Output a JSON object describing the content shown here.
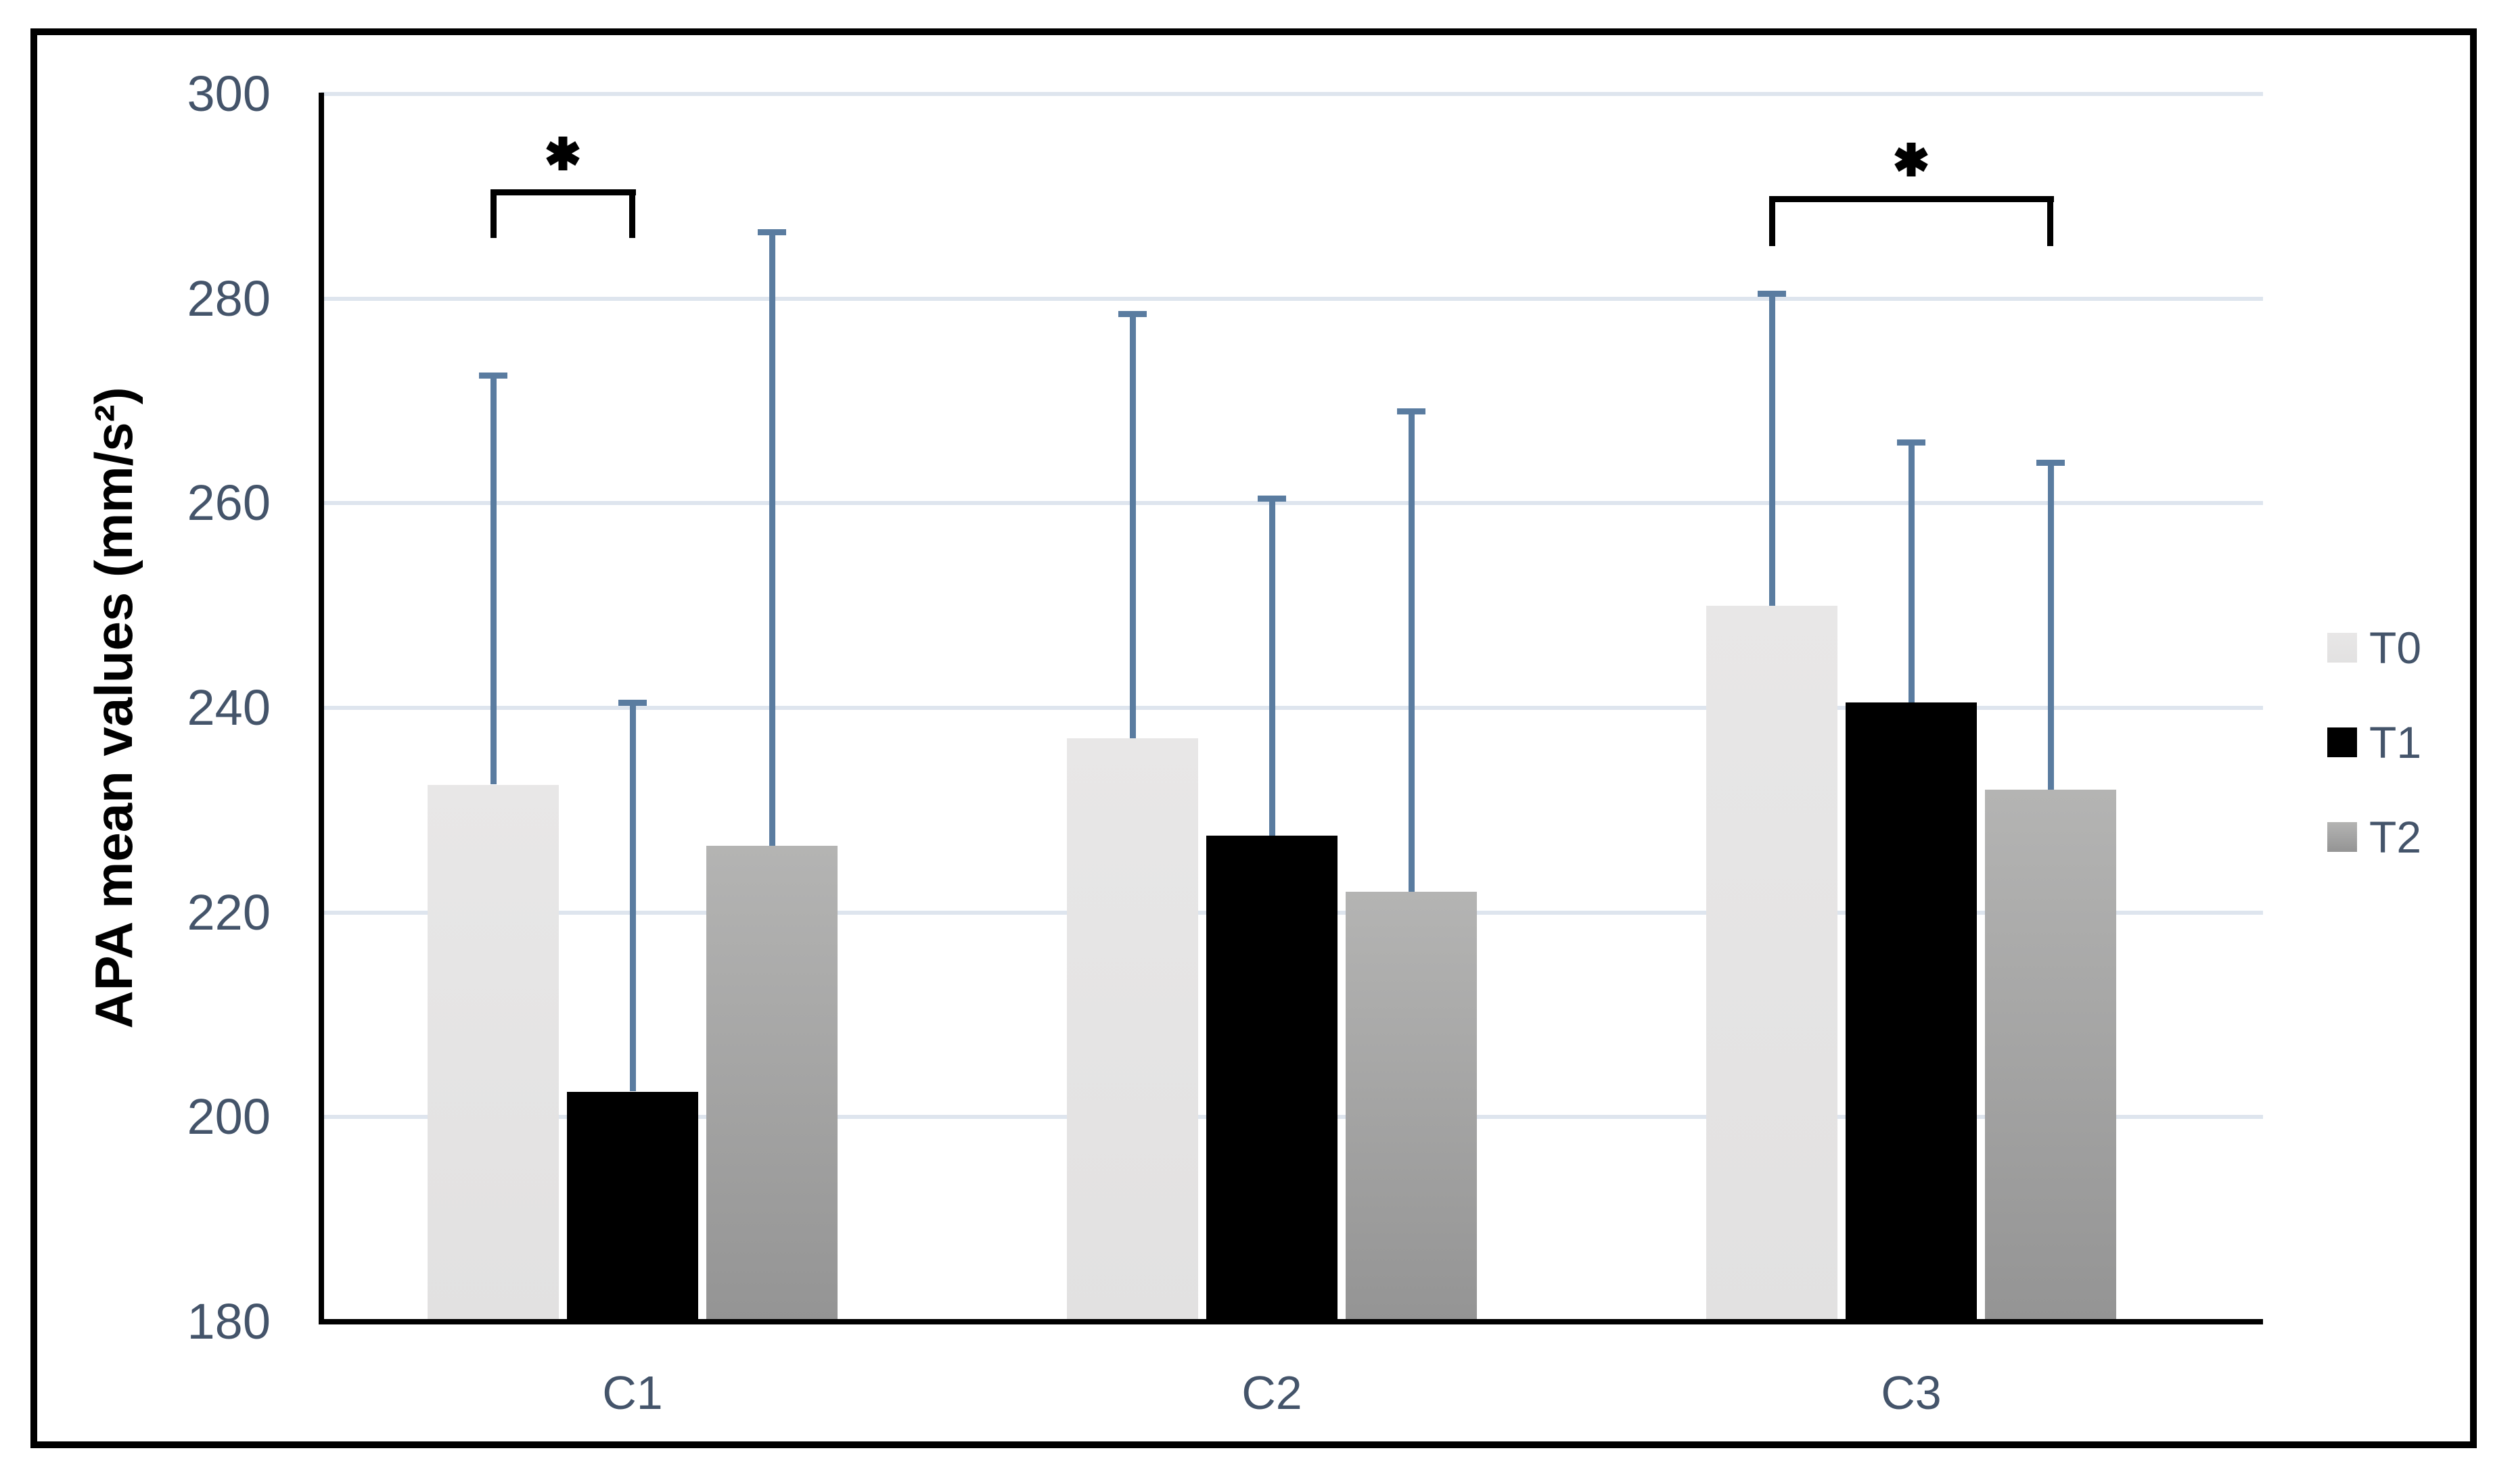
{
  "chart_data": {
    "type": "bar",
    "title": "",
    "categories": [
      "C1",
      "C2",
      "C3"
    ],
    "series": [
      {
        "name": "T0",
        "values": [
          232.5,
          237,
          250
        ],
        "error_top": [
          272.5,
          278.5,
          280.5
        ],
        "fill": "#E8E7E7",
        "fill_bottom": "#E2E1E1"
      },
      {
        "name": "T1",
        "values": [
          202.5,
          227.5,
          240.5
        ],
        "error_top": [
          240.5,
          260.5,
          266
        ],
        "fill": "#000000",
        "fill_bottom": "#000000"
      },
      {
        "name": "T2",
        "values": [
          226.5,
          222,
          232
        ],
        "error_top": [
          286.5,
          269,
          264
        ],
        "fill": "#B4B4B3",
        "fill_bottom": "#949494"
      }
    ],
    "ylabel": "APA mean values (mm/s²)",
    "xlabel": "",
    "ylim": [
      180,
      300
    ],
    "yticks": [
      300,
      280,
      260,
      240,
      220,
      200,
      180
    ],
    "grid": true,
    "legend_position": "right",
    "legend": [
      "T0",
      "T1",
      "T2"
    ],
    "annotations": [
      {
        "label": "*",
        "category": "C1",
        "between": [
          "T0",
          "T1"
        ],
        "bracket_top": 290.7,
        "bracket_leg_bottom": 285.9,
        "star_center": 294.2
      },
      {
        "label": "*",
        "category": "C3",
        "between": [
          "T0",
          "T2"
        ],
        "bracket_top": 290.0,
        "bracket_leg_bottom": 285.1,
        "star_center": 293.6
      }
    ],
    "colors": {
      "error_bar": "#5A7CA0",
      "gridline": "#DEE5EE",
      "tick_label": "#44546A",
      "category_label": "#44546A",
      "legend_label": "#44546A",
      "axis_line": "#000000",
      "annotation": "#000000",
      "frame_border": "#000000",
      "background": "#FFFFFF"
    }
  }
}
